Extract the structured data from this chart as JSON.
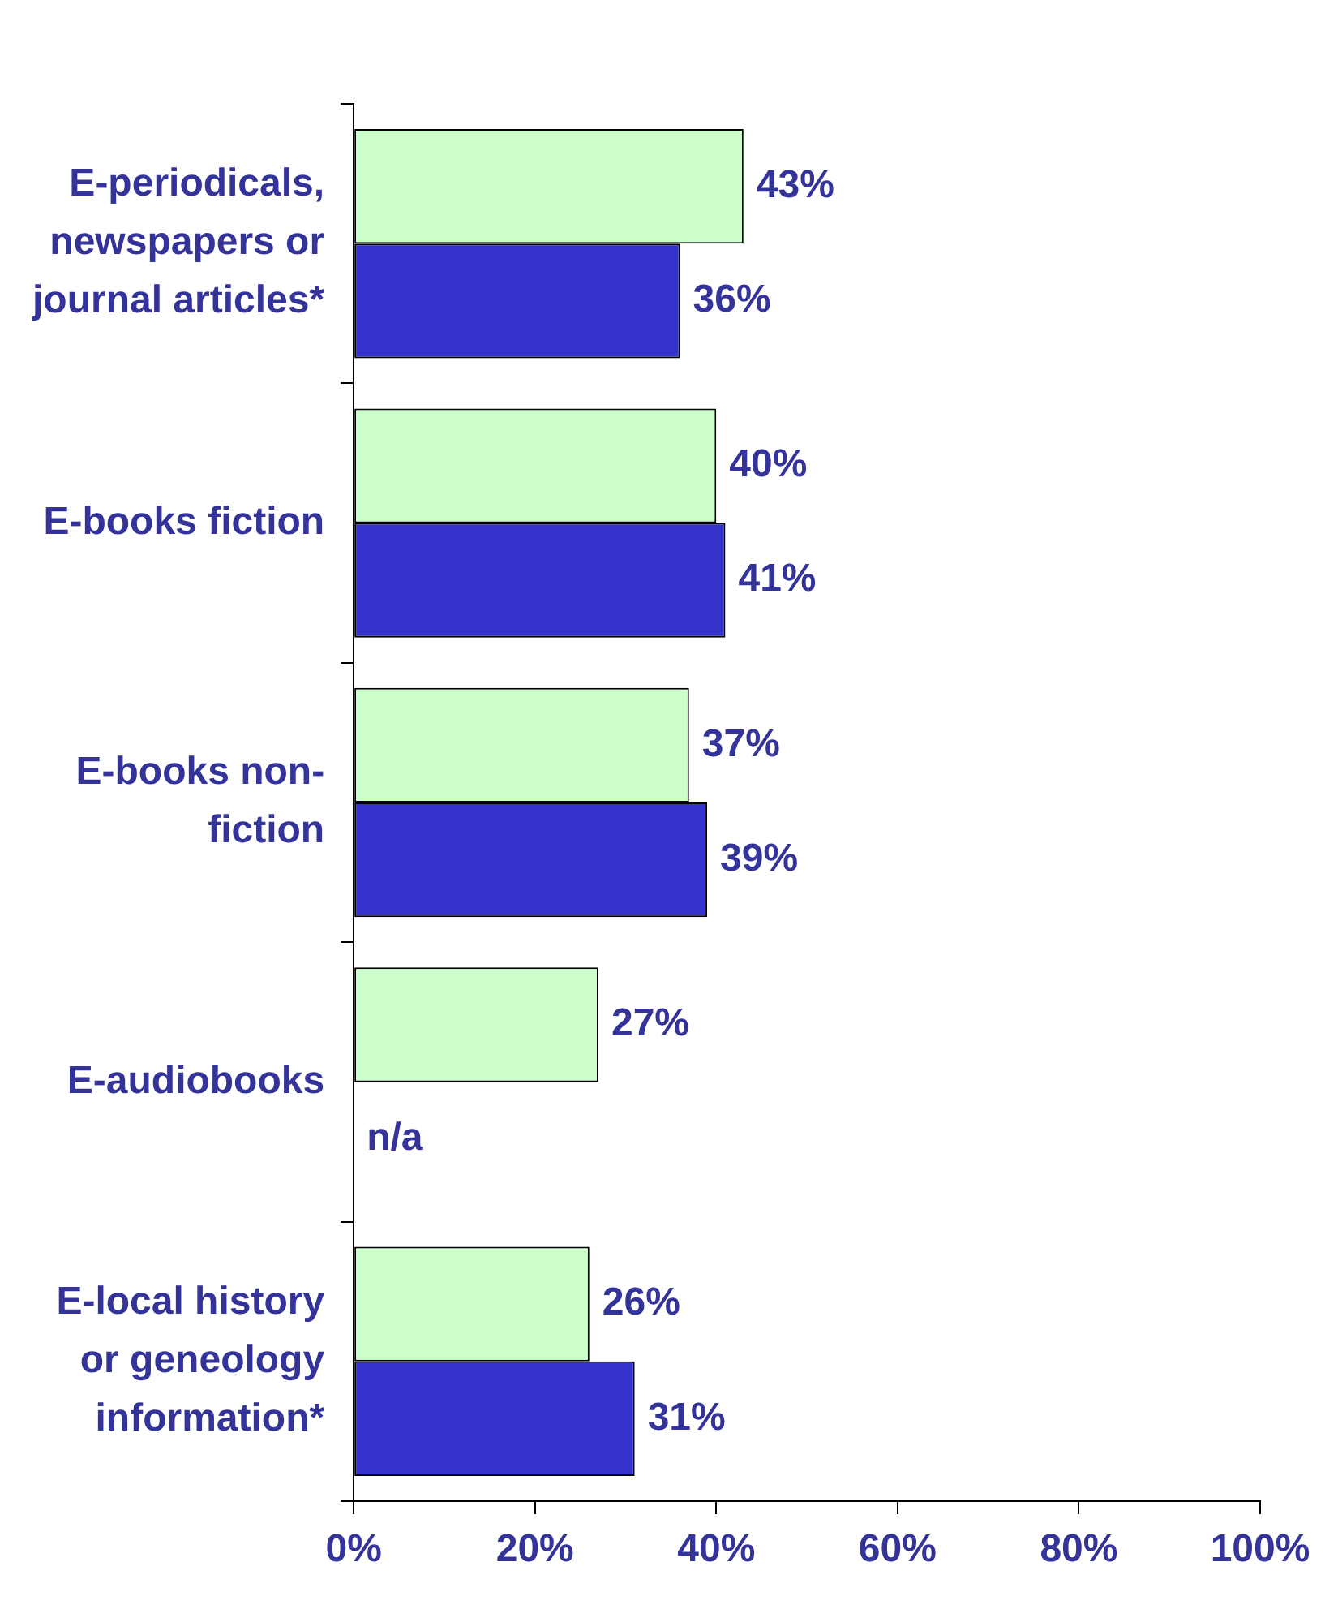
{
  "chart_data": {
    "type": "bar",
    "orientation": "horizontal",
    "categories": [
      "E-periodicals, newspapers or journal articles*",
      "E-books fiction",
      "E-books non-fiction",
      "E-audiobooks",
      "E-local history or geneology information*"
    ],
    "series": [
      {
        "color": "#ccffcc",
        "values": [
          43,
          40,
          37,
          27,
          26
        ],
        "value_labels": [
          "43%",
          "40%",
          "37%",
          "27%",
          "26%"
        ]
      },
      {
        "color": "#3333cc",
        "values": [
          36,
          41,
          39,
          null,
          31
        ],
        "value_labels": [
          "36%",
          "41%",
          "39%",
          "n/a",
          "31%"
        ]
      }
    ],
    "xlim": [
      0,
      100
    ],
    "xticks": [
      {
        "value": 0,
        "label": "0%"
      },
      {
        "value": 20,
        "label": "20%"
      },
      {
        "value": 40,
        "label": "40%"
      },
      {
        "value": 60,
        "label": "60%"
      },
      {
        "value": 80,
        "label": "80%"
      },
      {
        "value": 100,
        "label": "100%"
      }
    ],
    "grid": false,
    "legend": false
  }
}
